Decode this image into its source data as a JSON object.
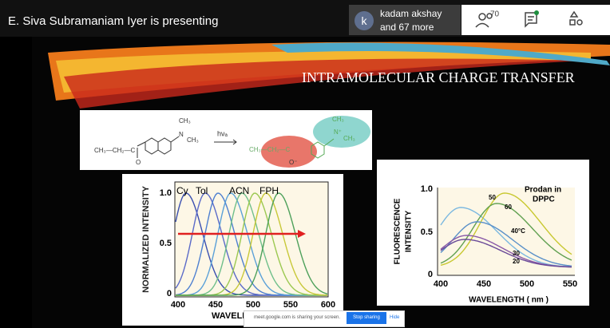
{
  "top_bar": {
    "presenter": "E. Siva Subramaniam Iyer is presenting",
    "avatar_letter": "k",
    "participant_name": "kadam akshay",
    "participant_more": "and 67 more",
    "people_count": "70"
  },
  "slide": {
    "title": "INTRAMOLECULAR CHARGE TRANSFER",
    "scheme": {
      "left_chain": "CH₃—CH₂—C",
      "left_oxygen": "O",
      "left_methyl_top": "CH₃",
      "left_nitrogen": "N",
      "left_methyl_right": "CH₃",
      "light": "hνₐ",
      "right_chain": "CH₃—CH₂—C",
      "right_oxygen": "O⁻",
      "right_methyl_top": "CH₃",
      "right_nitrogen": "N⁺",
      "right_methyl_right": "CH₃"
    },
    "left_plot": {
      "y_label": "NORMALIZED INTENSITY",
      "yticks": [
        "1.0",
        "0.5",
        "0"
      ],
      "xticks": [
        "400",
        "450",
        "500",
        "550",
        "600"
      ],
      "x_label": "WAVELE",
      "curve_labels": [
        "Cy",
        "Tol",
        "ACN",
        "FPH"
      ]
    },
    "right_plot": {
      "y_label_line1": "FLUORESCENCE",
      "y_label_line2": "INTENSITY",
      "yticks": [
        "1.0",
        "0.5",
        "0"
      ],
      "xticks": [
        "400",
        "450",
        "500",
        "550"
      ],
      "x_label": "WAVELENGTH ( nm )",
      "legend_line1": "Prodan in",
      "legend_line2": "DPPC",
      "curve_labels": [
        "50",
        "60",
        "40°C",
        "30",
        "20"
      ]
    }
  },
  "share_bar": {
    "message": "meet.google.com is sharing your screen.",
    "stop_button": "Stop sharing",
    "hide_button": "Hide"
  }
}
